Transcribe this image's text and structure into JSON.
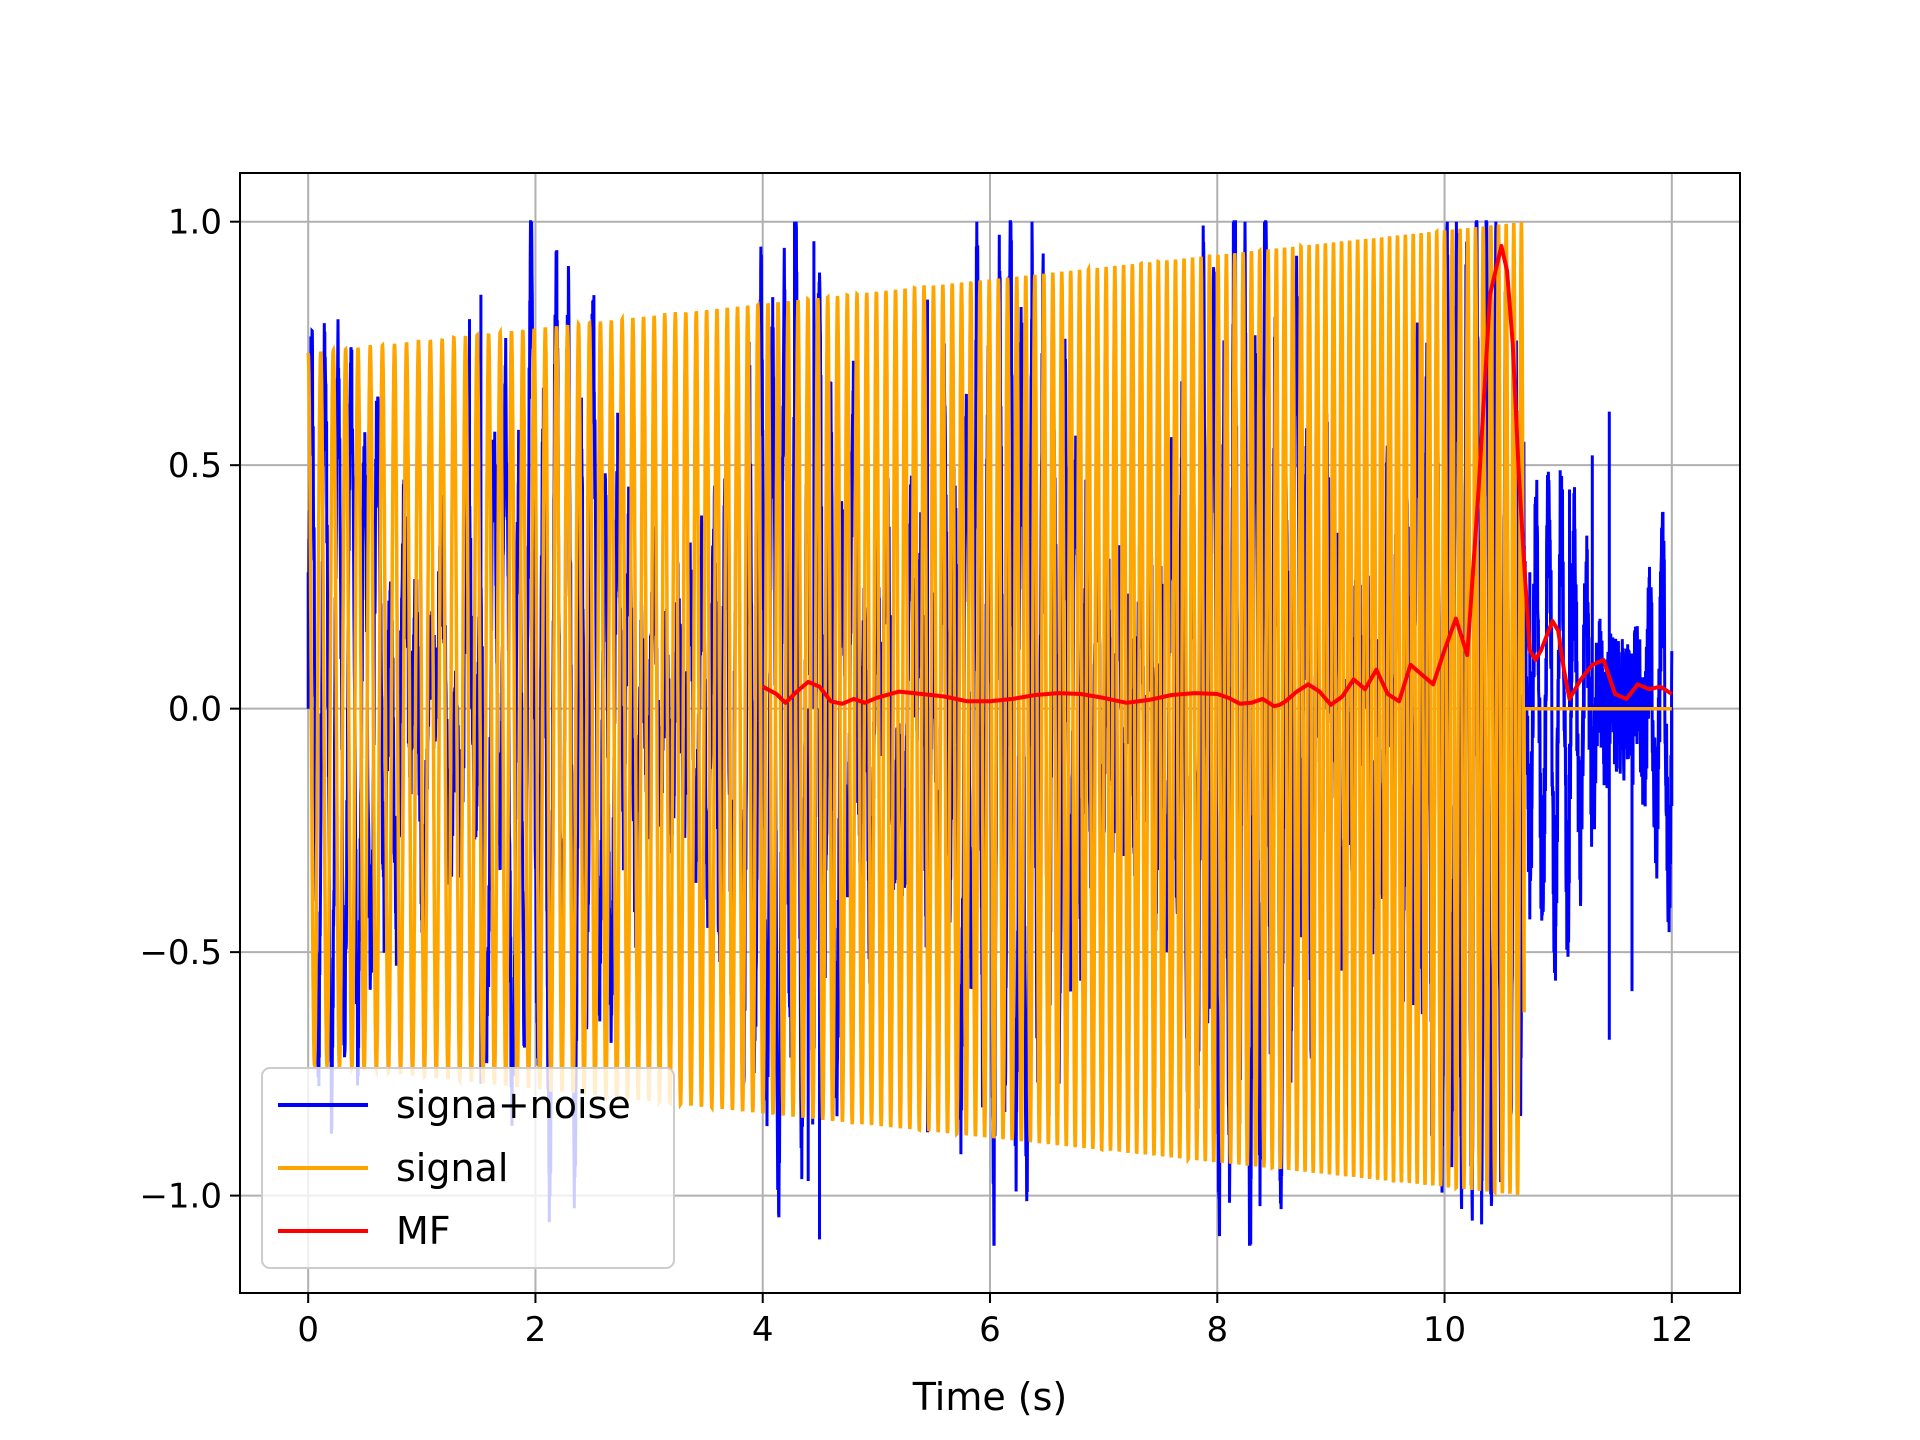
{
  "chart_data": {
    "type": "line",
    "title": "",
    "xlabel": "Time (s)",
    "ylabel": "",
    "xlim": [
      -0.6,
      12.6
    ],
    "ylim": [
      -1.2,
      1.1
    ],
    "grid": true,
    "legend_position": "lower-left",
    "x_ticks": [
      {
        "value": 0,
        "label": "0"
      },
      {
        "value": 2,
        "label": "2"
      },
      {
        "value": 4,
        "label": "4"
      },
      {
        "value": 6,
        "label": "6"
      },
      {
        "value": 8,
        "label": "8"
      },
      {
        "value": 10,
        "label": "10"
      },
      {
        "value": 12,
        "label": "12"
      }
    ],
    "y_ticks": [
      {
        "value": 1.0,
        "label": "1.0"
      },
      {
        "value": 0.5,
        "label": "0.5"
      },
      {
        "value": 0.0,
        "label": "0.0"
      },
      {
        "value": -0.5,
        "label": "−0.5"
      },
      {
        "value": -1.0,
        "label": "−1.0"
      }
    ],
    "series": [
      {
        "name": "signa+noise",
        "color": "#0000ff",
        "description_values": {
          "x_range": [
            0,
            12
          ],
          "sample_points": [
            [
              0.0,
              0.28
            ],
            [
              1.42,
              0.8
            ],
            [
              1.52,
              0.85
            ],
            [
              1.52,
              -0.77
            ],
            [
              4.28,
              1.0
            ],
            [
              4.45,
              0.96
            ],
            [
              4.5,
              -1.09
            ],
            [
              4.4,
              -0.97
            ],
            [
              5.45,
              0.84
            ],
            [
              5.45,
              -0.87
            ],
            [
              9.3,
              0.06
            ],
            [
              10.75,
              0.28
            ],
            [
              11.1,
              0.45
            ],
            [
              11.3,
              0.52
            ],
            [
              11.45,
              0.61
            ],
            [
              11.45,
              -0.68
            ],
            [
              11.65,
              -0.58
            ],
            [
              11.8,
              0.27
            ],
            [
              12.0,
              -0.2
            ]
          ]
        }
      },
      {
        "name": "signal",
        "color": "#ffa500",
        "description_values": {
          "x_range": [
            0,
            12
          ],
          "envelope_start": 0.73,
          "envelope_end": 1.0,
          "oscillation_end_x": 10.7,
          "after_end_value": 0.0
        }
      },
      {
        "name": "MF",
        "color": "#ff0000",
        "x": [
          4.0,
          4.12,
          4.2,
          4.3,
          4.4,
          4.5,
          4.6,
          4.7,
          4.8,
          4.9,
          5.0,
          5.2,
          5.4,
          5.6,
          5.8,
          6.0,
          6.2,
          6.4,
          6.6,
          6.8,
          7.0,
          7.2,
          7.4,
          7.6,
          7.8,
          8.0,
          8.1,
          8.2,
          8.3,
          8.4,
          8.5,
          8.55,
          8.6,
          8.7,
          8.8,
          8.9,
          9.0,
          9.1,
          9.2,
          9.3,
          9.4,
          9.5,
          9.6,
          9.7,
          9.8,
          9.9,
          10.0,
          10.1,
          10.2,
          10.3,
          10.4,
          10.5,
          10.55,
          10.6,
          10.65,
          10.7,
          10.75,
          10.8,
          10.85,
          10.9,
          10.95,
          11.0,
          11.05,
          11.1,
          11.15,
          11.2,
          11.3,
          11.4,
          11.5,
          11.6,
          11.7,
          11.8,
          11.9,
          12.0
        ],
        "y": [
          0.045,
          0.03,
          0.012,
          0.035,
          0.055,
          0.045,
          0.015,
          0.01,
          0.02,
          0.012,
          0.022,
          0.035,
          0.03,
          0.025,
          0.015,
          0.015,
          0.02,
          0.028,
          0.032,
          0.03,
          0.022,
          0.012,
          0.018,
          0.028,
          0.032,
          0.03,
          0.022,
          0.01,
          0.012,
          0.02,
          0.005,
          0.008,
          0.015,
          0.035,
          0.05,
          0.035,
          0.008,
          0.025,
          0.06,
          0.04,
          0.08,
          0.03,
          0.015,
          0.09,
          0.07,
          0.05,
          0.12,
          0.185,
          0.11,
          0.45,
          0.85,
          0.95,
          0.9,
          0.75,
          0.5,
          0.3,
          0.12,
          0.1,
          0.12,
          0.15,
          0.18,
          0.16,
          0.08,
          0.02,
          0.04,
          0.06,
          0.09,
          0.1,
          0.03,
          0.02,
          0.05,
          0.04,
          0.045,
          0.03
        ]
      }
    ]
  }
}
